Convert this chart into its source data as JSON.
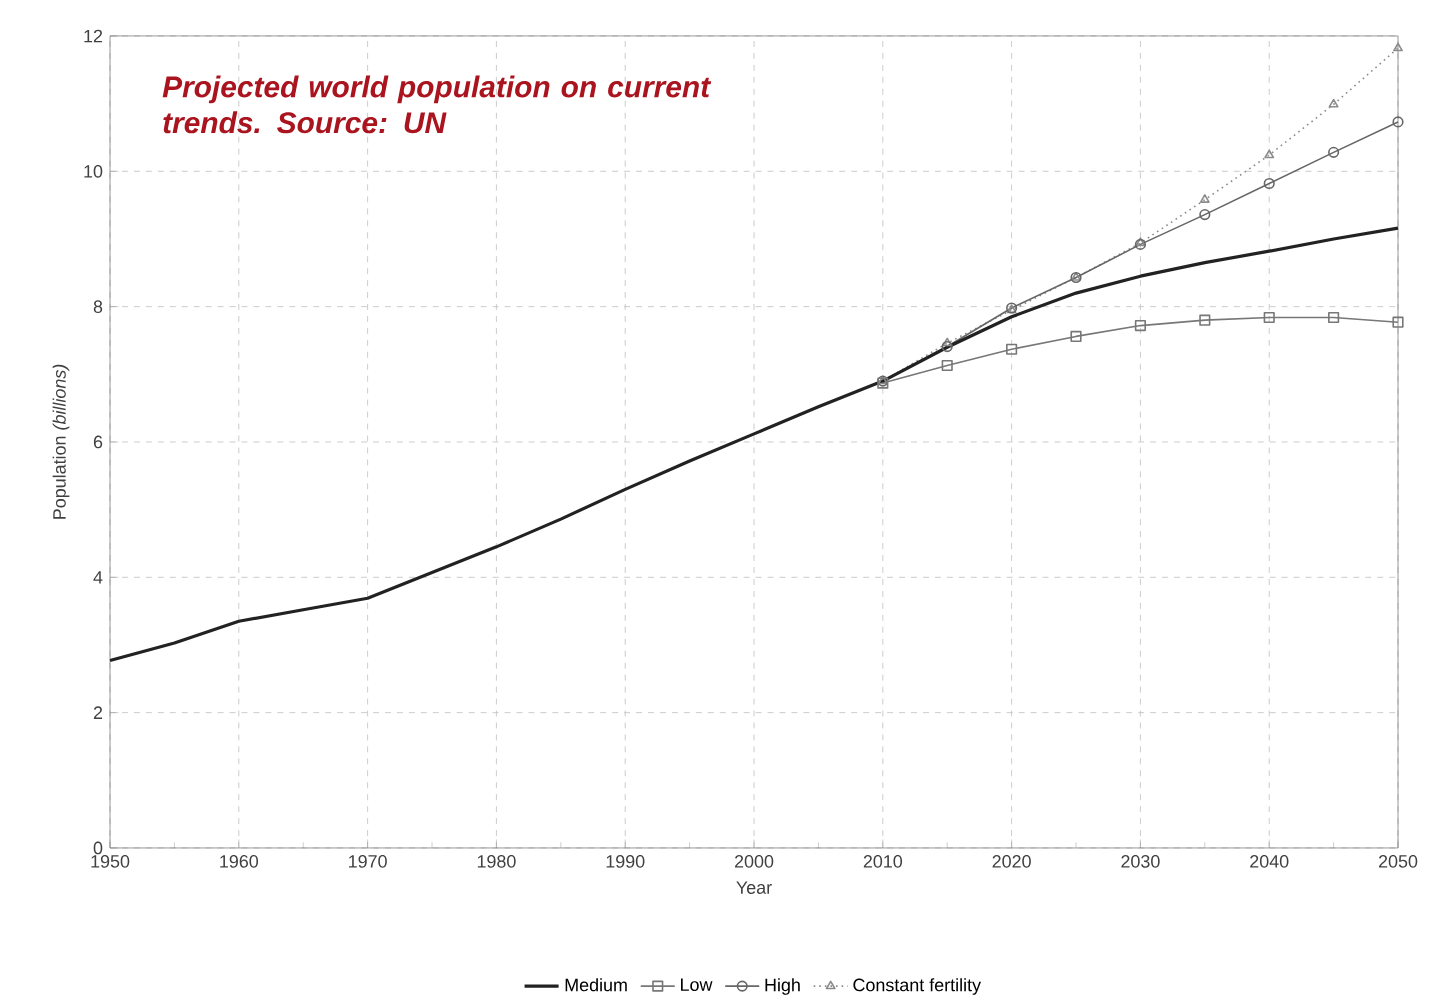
{
  "chart_data": {
    "type": "line",
    "title": "Projected world population on current trends. Source: UN",
    "xlabel": "Year",
    "ylabel": "Population *(billions)*",
    "xlim": [
      1950,
      2050
    ],
    "ylim": [
      0,
      12
    ],
    "xticks": [
      1950,
      1960,
      1970,
      1980,
      1990,
      2000,
      2010,
      2020,
      2030,
      2040,
      2050
    ],
    "yticks": [
      0,
      2,
      4,
      6,
      8,
      10,
      12
    ],
    "grid": true,
    "legend": "bottom",
    "series": [
      {
        "name": "Medium",
        "color": "#222222",
        "marker": "none",
        "line_style": "solid",
        "x": [
          1950,
          1955,
          1960,
          1965,
          1970,
          1975,
          1980,
          1985,
          1990,
          1995,
          2000,
          2005,
          2010,
          2015,
          2020,
          2025,
          2030,
          2035,
          2040,
          2045,
          2050
        ],
        "values": [
          2.77,
          3.03,
          3.35,
          3.52,
          3.69,
          4.07,
          4.45,
          4.86,
          5.3,
          5.72,
          6.12,
          6.52,
          6.9,
          7.4,
          7.85,
          8.2,
          8.45,
          8.65,
          8.82,
          9.0,
          9.16
        ]
      },
      {
        "name": "Low",
        "color": "#777777",
        "marker": "square",
        "line_style": "solid",
        "x": [
          2010,
          2015,
          2020,
          2025,
          2030,
          2035,
          2040,
          2045,
          2050
        ],
        "values": [
          6.87,
          7.13,
          7.37,
          7.56,
          7.72,
          7.8,
          7.84,
          7.84,
          7.77
        ]
      },
      {
        "name": "High",
        "color": "#666666",
        "marker": "circle",
        "line_style": "solid",
        "x": [
          2010,
          2015,
          2020,
          2025,
          2030,
          2035,
          2040,
          2045,
          2050
        ],
        "values": [
          6.9,
          7.41,
          7.98,
          8.43,
          8.92,
          9.36,
          9.82,
          10.28,
          10.73
        ]
      },
      {
        "name": "Constant fertility",
        "color": "#8a8a8a",
        "marker": "triangle",
        "line_style": "dotted",
        "x": [
          2010,
          2015,
          2020,
          2025,
          2030,
          2035,
          2040,
          2045,
          2050
        ],
        "values": [
          6.9,
          7.46,
          7.95,
          8.43,
          8.94,
          9.58,
          10.24,
          10.99,
          11.82
        ]
      }
    ]
  }
}
